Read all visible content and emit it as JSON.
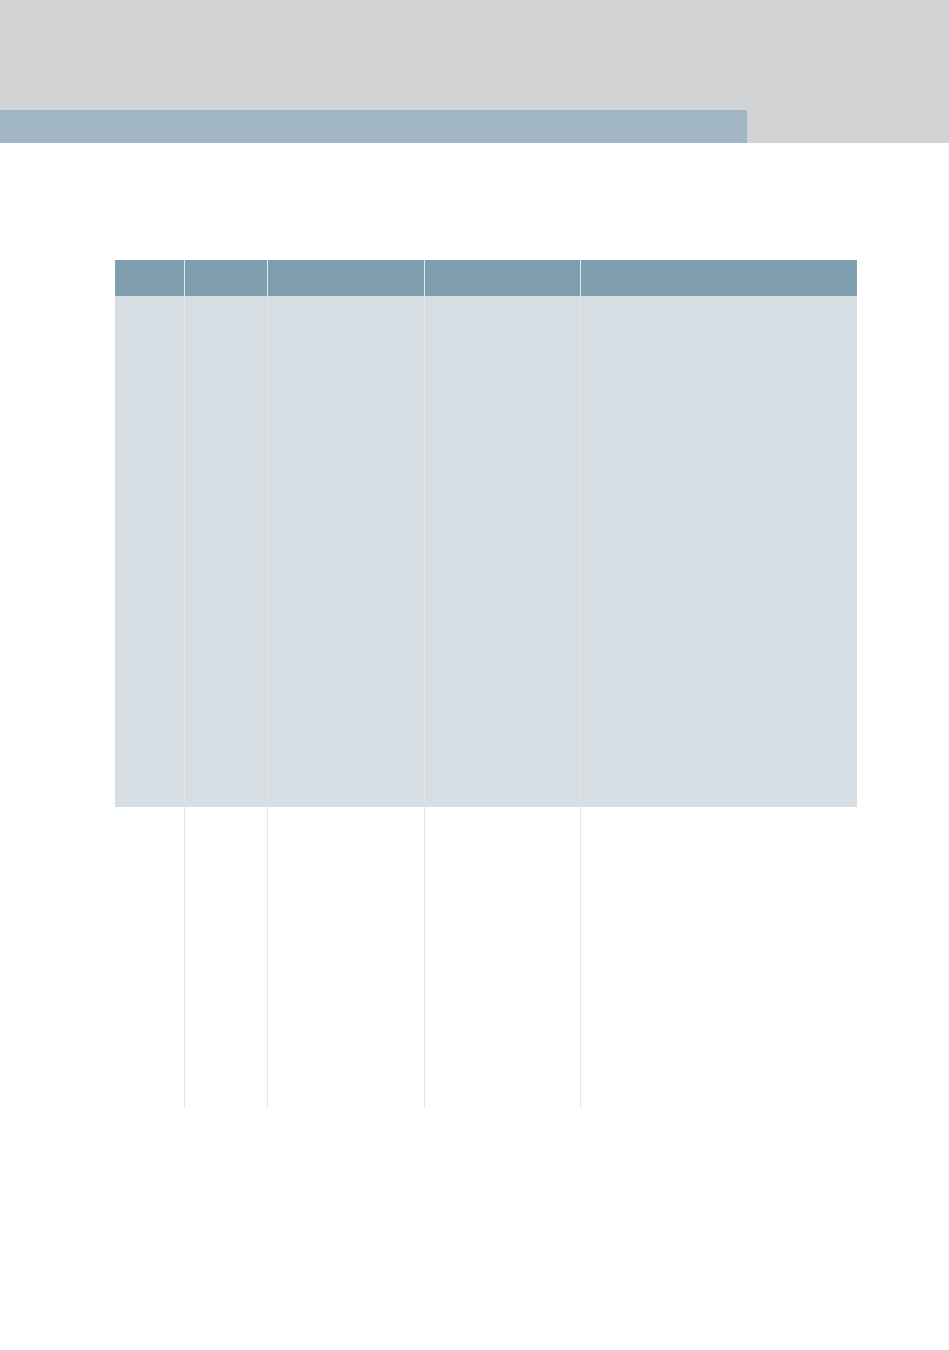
{
  "page": {
    "colors": {
      "top_band": "#d2d3d5",
      "top_accent_bar": "#a0b6c2",
      "table_header": "#7f9fb0",
      "shaded_row": "#d6dde3",
      "column_divider": "#e3e6e9"
    }
  },
  "table": {
    "headers": [
      "",
      "",
      "",
      "",
      ""
    ],
    "rows": [
      [
        "",
        "",
        "",
        "",
        ""
      ],
      [
        "",
        "",
        "",
        "",
        ""
      ]
    ]
  }
}
